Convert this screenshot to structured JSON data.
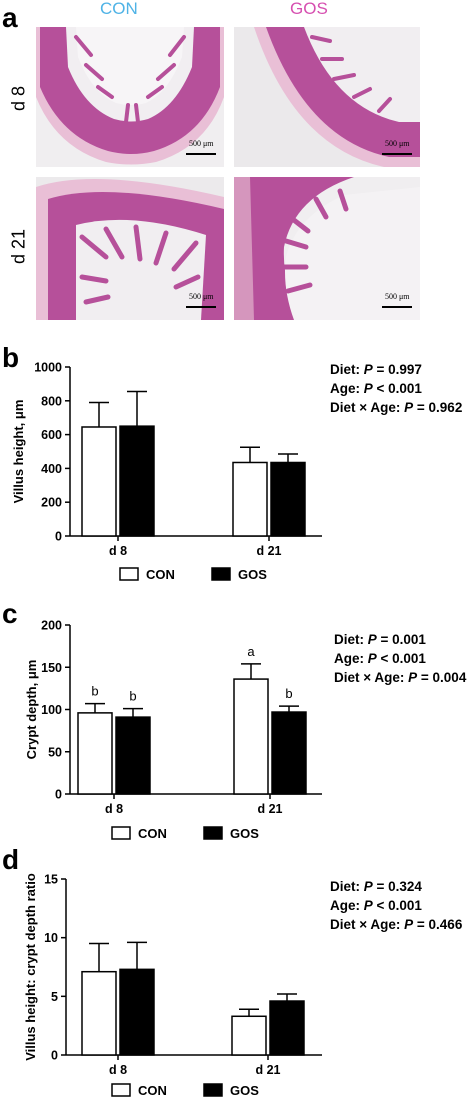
{
  "panel_a": {
    "letter": "a",
    "columns": [
      "CON",
      "GOS"
    ],
    "column_colors": [
      "#4fb3e6",
      "#d64fb0"
    ],
    "rows": [
      "d 8",
      "d 21"
    ],
    "scale_bars": [
      "500 μm",
      "500 μm",
      "500 μm",
      "500 μm"
    ],
    "tissue_colors": {
      "villus": "#b6509a",
      "lumen": "#f1eef1",
      "muscle": "#e9bfd6",
      "background": "#e8e6e8"
    }
  },
  "panel_b": {
    "letter": "b",
    "stats": [
      {
        "label": "Diet: ",
        "p": "P",
        "rest": " = 0.997"
      },
      {
        "label": "Age: ",
        "p": "P",
        "rest": " < 0.001"
      },
      {
        "label": "Diet × Age: ",
        "p": "P",
        "rest": " = 0.962"
      }
    ]
  },
  "panel_c": {
    "letter": "c",
    "stats": [
      {
        "label": "Diet: ",
        "p": "P",
        "rest": " = 0.001"
      },
      {
        "label": "Age: ",
        "p": "P",
        "rest": " < 0.001"
      },
      {
        "label": "Diet × Age: ",
        "p": "P",
        "rest": " = 0.004"
      }
    ]
  },
  "panel_d": {
    "letter": "d",
    "stats": [
      {
        "label": "Diet: ",
        "p": "P",
        "rest": " = 0.324"
      },
      {
        "label": "Age: ",
        "p": "P",
        "rest": " < 0.001"
      },
      {
        "label": "Diet × Age: ",
        "p": "P",
        "rest": " = 0.466"
      }
    ]
  },
  "chart_data": [
    {
      "type": "bar",
      "panel": "b",
      "categories": [
        "d 8",
        "d 21"
      ],
      "series": [
        {
          "name": "CON",
          "values": [
            645,
            435
          ],
          "errors": [
            145,
            90
          ],
          "fill": "#ffffff"
        },
        {
          "name": "GOS",
          "values": [
            650,
            435
          ],
          "errors": [
            205,
            50
          ],
          "fill": "#000000"
        }
      ],
      "ylabel": "Villus height, μm",
      "ylim": [
        0,
        1000
      ],
      "yticks": [
        0,
        200,
        400,
        600,
        800,
        1000
      ],
      "letters": null,
      "legend": "bottom"
    },
    {
      "type": "bar",
      "panel": "c",
      "categories": [
        "d 8",
        "d 21"
      ],
      "series": [
        {
          "name": "CON",
          "values": [
            96,
            136
          ],
          "errors": [
            11,
            18
          ],
          "fill": "#ffffff"
        },
        {
          "name": "GOS",
          "values": [
            91,
            97
          ],
          "errors": [
            10,
            7
          ],
          "fill": "#000000"
        }
      ],
      "ylabel": "Crypt depth, μm",
      "ylim": [
        0,
        200
      ],
      "yticks": [
        0,
        50,
        100,
        150,
        200
      ],
      "letters": [
        [
          "b",
          "b"
        ],
        [
          "a",
          "b"
        ]
      ],
      "legend": "bottom"
    },
    {
      "type": "bar",
      "panel": "d",
      "categories": [
        "d 8",
        "d 21"
      ],
      "series": [
        {
          "name": "CON",
          "values": [
            7.1,
            3.3
          ],
          "errors": [
            2.4,
            0.6
          ],
          "fill": "#ffffff"
        },
        {
          "name": "GOS",
          "values": [
            7.3,
            4.6
          ],
          "errors": [
            2.3,
            0.6
          ],
          "fill": "#000000"
        }
      ],
      "ylabel": "Villus height: crypt depth ratio",
      "ylim": [
        0,
        15
      ],
      "yticks": [
        0,
        5,
        10,
        15
      ],
      "letters": null,
      "legend": "bottom"
    }
  ]
}
